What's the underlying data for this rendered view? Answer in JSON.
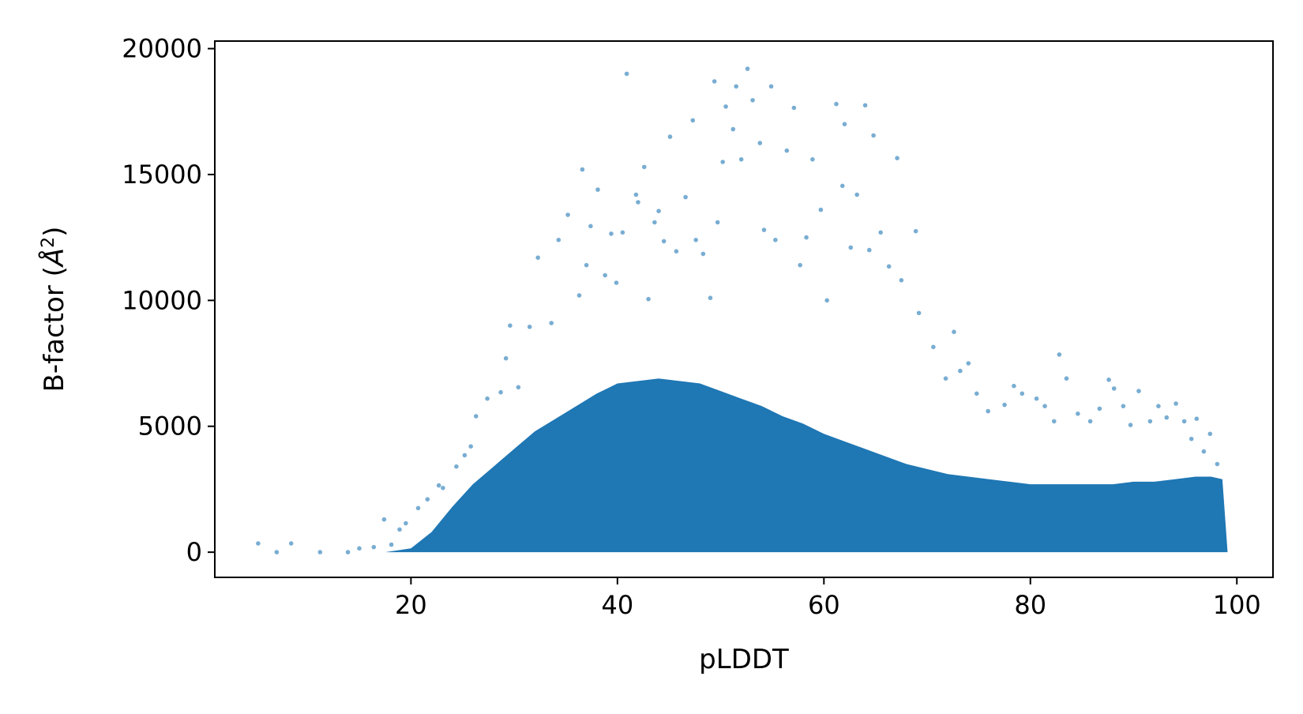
{
  "chart_data": {
    "type": "scatter",
    "title": "",
    "xlabel": "pLDDT",
    "ylabel": "B-factor (Å²)",
    "ylabel_parts": {
      "prefix": "B-factor (",
      "symbol": "Å",
      "superscript": "2",
      "suffix": ")"
    },
    "xlim": [
      1,
      103.5
    ],
    "ylim": [
      -1000,
      20300
    ],
    "xticks": [
      20,
      40,
      60,
      80,
      100
    ],
    "yticks": [
      0,
      5000,
      10000,
      15000,
      20000
    ],
    "xtick_labels": [
      "20",
      "40",
      "60",
      "80",
      "100"
    ],
    "ytick_labels": [
      "0",
      "5000",
      "10000",
      "15000",
      "20000"
    ],
    "grid": false,
    "legend": "none",
    "color": "#1f77b4",
    "point_alpha": 0.6,
    "density_envelope": {
      "x": [
        17.5,
        20,
        22,
        24,
        26,
        28,
        30,
        32,
        34,
        36,
        38,
        40,
        42,
        44,
        46,
        48,
        50,
        52,
        54,
        56,
        58,
        60,
        62,
        64,
        66,
        68,
        70,
        72,
        74,
        76,
        78,
        80,
        82,
        84,
        86,
        88,
        90,
        92,
        94,
        96,
        97.5,
        98.6,
        99.1
      ],
      "y": [
        0,
        150,
        800,
        1800,
        2700,
        3400,
        4100,
        4800,
        5300,
        5800,
        6300,
        6700,
        6800,
        6900,
        6800,
        6700,
        6400,
        6100,
        5800,
        5400,
        5100,
        4700,
        4400,
        4100,
        3800,
        3500,
        3300,
        3100,
        3000,
        2900,
        2800,
        2700,
        2700,
        2700,
        2700,
        2700,
        2800,
        2800,
        2900,
        3000,
        3000,
        2900,
        0
      ]
    },
    "series": [
      {
        "x": [
          5.2,
          7.0,
          8.4,
          11.2,
          13.9,
          15.0,
          16.4,
          17.4,
          18.1,
          18.9,
          19.5,
          20.7,
          21.6,
          22.7,
          23.1,
          24.4,
          25.2,
          25.8,
          26.3,
          27.4,
          28.7,
          29.2,
          29.6,
          30.4,
          31.5,
          32.3,
          33.6,
          34.3,
          35.2,
          36.3,
          36.6,
          37.0,
          37.4,
          38.1,
          38.8,
          39.4,
          39.9,
          40.5,
          40.9,
          41.8,
          42.0,
          42.6,
          43.0,
          43.6,
          44.0,
          44.5,
          45.1,
          45.7,
          46.6,
          47.3,
          47.6,
          48.3,
          49.0,
          49.4,
          49.7,
          50.2,
          50.5,
          51.2,
          51.5,
          52.0,
          52.6,
          53.1,
          53.8,
          54.2,
          54.9,
          55.3,
          56.4,
          57.1,
          57.7,
          58.3,
          58.9,
          59.7,
          60.3,
          61.2,
          61.8,
          62.0,
          62.6,
          63.2,
          64.0,
          64.4,
          64.8,
          65.5,
          66.3,
          67.1,
          67.5,
          68.9,
          69.2,
          70.6,
          71.8,
          72.6,
          73.2,
          74.0,
          74.8,
          75.9,
          77.5,
          78.4,
          79.2,
          80.6,
          81.4,
          82.3,
          82.8,
          83.5,
          84.6,
          85.8,
          86.7,
          87.6,
          88.1,
          89.0,
          89.7,
          90.5,
          91.6,
          92.4,
          93.2,
          94.1,
          94.9,
          95.6,
          96.1,
          96.8,
          97.4,
          98.1
        ],
        "y": [
          350,
          0,
          350,
          0,
          0,
          150,
          200,
          1300,
          300,
          900,
          1150,
          1750,
          2100,
          2650,
          2550,
          3400,
          3850,
          4200,
          5400,
          6100,
          6350,
          7700,
          9000,
          6550,
          8950,
          11700,
          9100,
          12400,
          13400,
          10200,
          15200,
          11400,
          12950,
          14400,
          11000,
          12650,
          10700,
          12700,
          19000,
          14200,
          13900,
          15300,
          10050,
          13100,
          13550,
          12350,
          16500,
          11950,
          14100,
          17150,
          12400,
          11850,
          10100,
          18700,
          13100,
          15500,
          17700,
          16800,
          18500,
          15600,
          19200,
          17950,
          16250,
          12800,
          18500,
          12400,
          15950,
          17650,
          11400,
          12500,
          15600,
          13600,
          10000,
          17800,
          14550,
          17000,
          12100,
          14200,
          17750,
          12000,
          16550,
          12700,
          11350,
          15650,
          10800,
          12750,
          9500,
          8150,
          6900,
          8750,
          7200,
          7500,
          6300,
          5600,
          5850,
          6600,
          6300,
          6100,
          5800,
          5200,
          7850,
          6900,
          5500,
          5200,
          5700,
          6850,
          6500,
          5800,
          5050,
          6400,
          5200,
          5800,
          5350,
          5900,
          5200,
          4500,
          5300,
          4000,
          4700,
          3500
        ]
      }
    ]
  }
}
